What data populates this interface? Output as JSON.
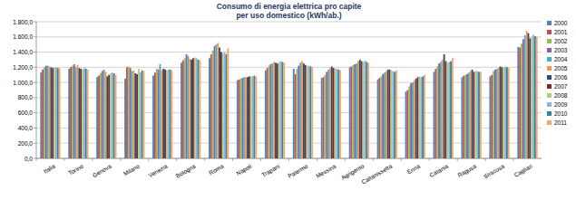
{
  "chart_data": {
    "type": "bar",
    "title": "Consumo di energia elettrica pro capite",
    "subtitle": "per uso domestico (kWh/ab.)",
    "categories": [
      "Italia",
      "Torino",
      "Genova",
      "Milano",
      "Venezia",
      "Bologna",
      "Roma",
      "Napoli",
      "Trapani",
      "Palermo",
      "Messina",
      "Agrigento",
      "Caltanissetta",
      "Enna",
      "Catania",
      "Ragusa",
      "Siracusa",
      "Cagliari"
    ],
    "series": [
      {
        "name": "2000",
        "color": "#4F81BD",
        "values": [
          1130,
          1180,
          1070,
          1050,
          1090,
          1260,
          1320,
          1030,
          1160,
          1180,
          1060,
          1200,
          1040,
          880,
          1140,
          1070,
          1080,
          1470
        ]
      },
      {
        "name": "2001",
        "color": "#C0504D",
        "values": [
          1170,
          1200,
          1090,
          1200,
          1130,
          1290,
          1370,
          1040,
          1190,
          1110,
          1070,
          1210,
          1060,
          900,
          1180,
          1090,
          1100,
          1460
        ]
      },
      {
        "name": "2002",
        "color": "#9BBB59",
        "values": [
          1200,
          1220,
          1120,
          1210,
          1180,
          1320,
          1420,
          1050,
          1220,
          1180,
          1100,
          1230,
          1080,
          950,
          1210,
          1100,
          1150,
          1510
        ]
      },
      {
        "name": "2003",
        "color": "#8064A2",
        "values": [
          1220,
          1240,
          1150,
          1190,
          1170,
          1370,
          1480,
          1060,
          1240,
          1220,
          1140,
          1240,
          1110,
          990,
          1250,
          1110,
          1170,
          1570
        ]
      },
      {
        "name": "2004",
        "color": "#4BACC6",
        "values": [
          1220,
          1200,
          1170,
          1150,
          1240,
          1350,
          1500,
          1070,
          1250,
          1260,
          1170,
          1250,
          1130,
          1000,
          1270,
          1130,
          1180,
          1620
        ]
      },
      {
        "name": "2005",
        "color": "#F79646",
        "values": [
          1210,
          1230,
          1140,
          1160,
          1160,
          1310,
          1520,
          1070,
          1270,
          1280,
          1190,
          1280,
          1150,
          1030,
          1300,
          1150,
          1190,
          1680
        ]
      },
      {
        "name": "2006",
        "color": "#2C4D75",
        "values": [
          1200,
          1190,
          1080,
          1120,
          1180,
          1300,
          1460,
          1070,
          1260,
          1250,
          1210,
          1300,
          1170,
          1050,
          1370,
          1170,
          1210,
          1650
        ]
      },
      {
        "name": "2007",
        "color": "#772C2A",
        "values": [
          1190,
          1180,
          1100,
          1110,
          1170,
          1320,
          1400,
          1080,
          1250,
          1230,
          1190,
          1280,
          1170,
          1070,
          1280,
          1140,
          1200,
          1580
        ]
      },
      {
        "name": "2008",
        "color": "#B3CC82",
        "values": [
          1200,
          1170,
          1120,
          1180,
          1160,
          1330,
          1380,
          1080,
          1270,
          1220,
          1180,
          1270,
          1160,
          1080,
          1260,
          1150,
          1200,
          1600
        ]
      },
      {
        "name": "2009",
        "color": "#8DB3E2",
        "values": [
          1200,
          1190,
          1130,
          1130,
          1170,
          1320,
          1400,
          1080,
          1280,
          1220,
          1180,
          1290,
          1150,
          1070,
          1270,
          1150,
          1210,
          1630
        ]
      },
      {
        "name": "2010",
        "color": "#31859C",
        "values": [
          1190,
          1180,
          1120,
          1160,
          1170,
          1300,
          1370,
          1090,
          1270,
          1210,
          1170,
          1270,
          1140,
          1080,
          1280,
          1140,
          1200,
          1610
        ]
      },
      {
        "name": "2011",
        "color": "#F9A766",
        "values": [
          1185,
          1170,
          1100,
          1150,
          1160,
          1290,
          1450,
          1080,
          1260,
          1200,
          1160,
          1260,
          1160,
          1100,
          1320,
          1140,
          1190,
          1600
        ]
      }
    ],
    "ylim": [
      0,
      1800
    ],
    "yticks": [
      {
        "value": 0,
        "label": "0,0"
      },
      {
        "value": 200,
        "label": "200,0"
      },
      {
        "value": 400,
        "label": "400,0"
      },
      {
        "value": 600,
        "label": "600,0"
      },
      {
        "value": 800,
        "label": "800,0"
      },
      {
        "value": 1000,
        "label": "1.000,0"
      },
      {
        "value": 1200,
        "label": "1.200,0"
      },
      {
        "value": 1400,
        "label": "1.400,0"
      },
      {
        "value": 1600,
        "label": "1.600,0"
      },
      {
        "value": 1800,
        "label": "1.800,0"
      }
    ],
    "grid": true,
    "legend": "right"
  }
}
